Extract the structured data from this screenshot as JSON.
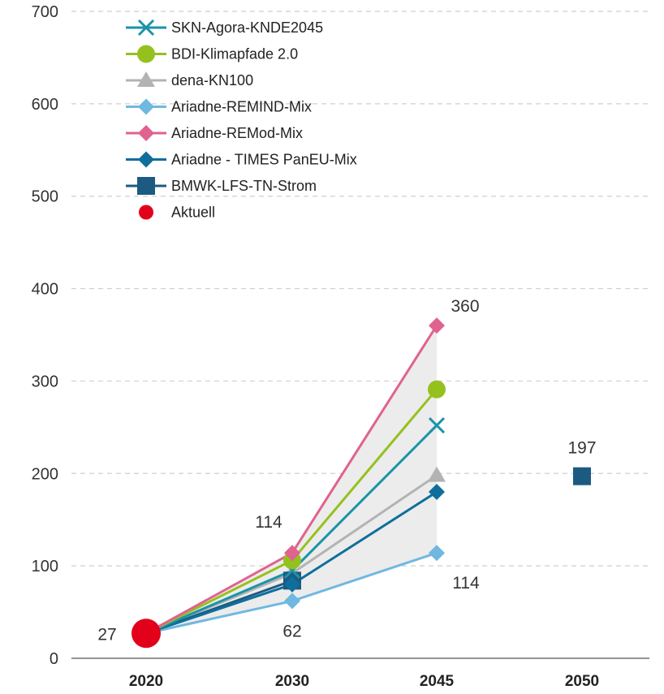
{
  "chart_data": {
    "type": "line",
    "x": [
      "2020",
      "2030",
      "2045",
      "2050"
    ],
    "ylim": [
      0,
      700
    ],
    "y_ticks": [
      "0",
      "100",
      "200",
      "300",
      "400",
      "500",
      "600",
      "700"
    ],
    "grid": "horizontal dashed",
    "legend_position": "top-left",
    "series": [
      {
        "name": "SKN-Agora-KNDE2045",
        "color": "#1a94a8",
        "marker": "x",
        "values": [
          27,
          95,
          252,
          null
        ]
      },
      {
        "name": "BDI-Klimapfade 2.0",
        "color": "#95c11f",
        "marker": "circle",
        "values": [
          27,
          106,
          291,
          null
        ]
      },
      {
        "name": "dena-KN100",
        "color": "#b3b3b3",
        "marker": "triangle",
        "values": [
          27,
          92,
          198,
          null
        ]
      },
      {
        "name": "Ariadne-REMIND-Mix",
        "color": "#6fb8e0",
        "marker": "diamond",
        "values": [
          27,
          62,
          114,
          null
        ]
      },
      {
        "name": "Ariadne-REMod-Mix",
        "color": "#e0628f",
        "marker": "diamond",
        "values": [
          27,
          114,
          360,
          null
        ]
      },
      {
        "name": "Ariadne - TIMES PanEU-Mix",
        "color": "#0f6e9c",
        "marker": "diamond",
        "values": [
          27,
          80,
          180,
          null
        ]
      },
      {
        "name": "BMWK-LFS-TN-Strom",
        "color": "#1d5a82",
        "marker": "square",
        "values": [
          27,
          84,
          null,
          197
        ]
      },
      {
        "name": "Aktuell",
        "color": "#e3001b",
        "marker": "dot",
        "values": [
          27,
          null,
          null,
          null
        ]
      }
    ],
    "range_band": {
      "color": "#ececec",
      "lower_series": "Ariadne-REMIND-Mix",
      "upper_series": "Ariadne-REMod-Mix"
    },
    "annotations": [
      {
        "text": "27",
        "x": "2020",
        "y": 27
      },
      {
        "text": "114",
        "x": "2030",
        "y": 114
      },
      {
        "text": "62",
        "x": "2030",
        "y": 62
      },
      {
        "text": "360",
        "x": "2045",
        "y": 360
      },
      {
        "text": "114",
        "x": "2045",
        "y": 114
      },
      {
        "text": "197",
        "x": "2050",
        "y": 197
      }
    ]
  }
}
